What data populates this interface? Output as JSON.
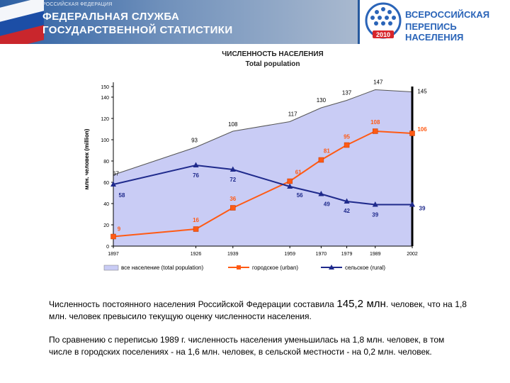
{
  "header": {
    "country": "РОССИЙСКАЯ ФЕДЕРАЦИЯ",
    "agency_line1": "ФЕДЕРАЛЬНАЯ СЛУЖБА",
    "agency_line2": "ГОСУДАРСТВЕННОЙ СТАТИСТИКИ",
    "census_line1": "ВСЕРОССИЙСКАЯ",
    "census_line2": "ПЕРЕПИСЬ НАСЕЛЕНИЯ",
    "census_year": "2010"
  },
  "colors": {
    "banner": "#1e4f92",
    "total_area": "#c9ccf5",
    "total_line": "#555555",
    "urban": "#ff5a14",
    "rural": "#1f2a8c"
  },
  "chart_data": {
    "type": "area",
    "title": "ЧИСЛЕННОСТЬ НАСЕЛЕНИЯ",
    "subtitle": "Total population",
    "ylabel": "млн. человек (million)",
    "ylim": [
      0,
      150
    ],
    "yticks": [
      0,
      20,
      40,
      60,
      80,
      100,
      120,
      140,
      150
    ],
    "ytick_labels": [
      "0",
      "20",
      "40",
      "60",
      "80",
      "100",
      "120",
      "140",
      "150"
    ],
    "x": [
      "1897",
      "1926",
      "1939",
      "1959",
      "1970",
      "1979",
      "1989",
      "2002"
    ],
    "x_years": [
      1897,
      1926,
      1939,
      1959,
      1970,
      1979,
      1989,
      2002
    ],
    "grid": false,
    "legend_position": "bottom",
    "series": [
      {
        "key": "total",
        "name": "все население (total population)",
        "type": "area",
        "color": "#c9ccf5",
        "values": [
          67,
          93,
          108,
          117,
          130,
          137,
          147,
          145
        ],
        "labels": [
          "67",
          "93",
          "108",
          "117",
          "130",
          "137",
          "147",
          "145"
        ]
      },
      {
        "key": "urban",
        "name": "городское (urban)",
        "type": "line",
        "marker": "square",
        "color": "#ff5a14",
        "values": [
          9,
          16,
          36,
          61,
          81,
          95,
          108,
          106
        ],
        "labels": [
          "9",
          "16",
          "36",
          "61",
          "81",
          "95",
          "108",
          "106"
        ]
      },
      {
        "key": "rural",
        "name": "сельское (rural)",
        "type": "line",
        "marker": "triangle",
        "color": "#1f2a8c",
        "values": [
          58,
          76,
          72,
          56,
          49,
          42,
          39,
          39
        ],
        "labels": [
          "58",
          "76",
          "72",
          "56",
          "49",
          "42",
          "39",
          "39"
        ]
      }
    ]
  },
  "text": {
    "para1_a": "Численность постоянного населения Российской Федерации составила ",
    "para1_num": "145,2 млн",
    "para1_b": ". человек, что на 1,8 млн. человек превысило текущую оценку численности населения.",
    "para2": "По сравнению с переписью 1989 г. численность населения уменьшилась на 1,8 млн. человек, в том числе в городских поселениях - на 1,6 млн. человек, в сельской местности - на 0,2 млн. человек."
  }
}
